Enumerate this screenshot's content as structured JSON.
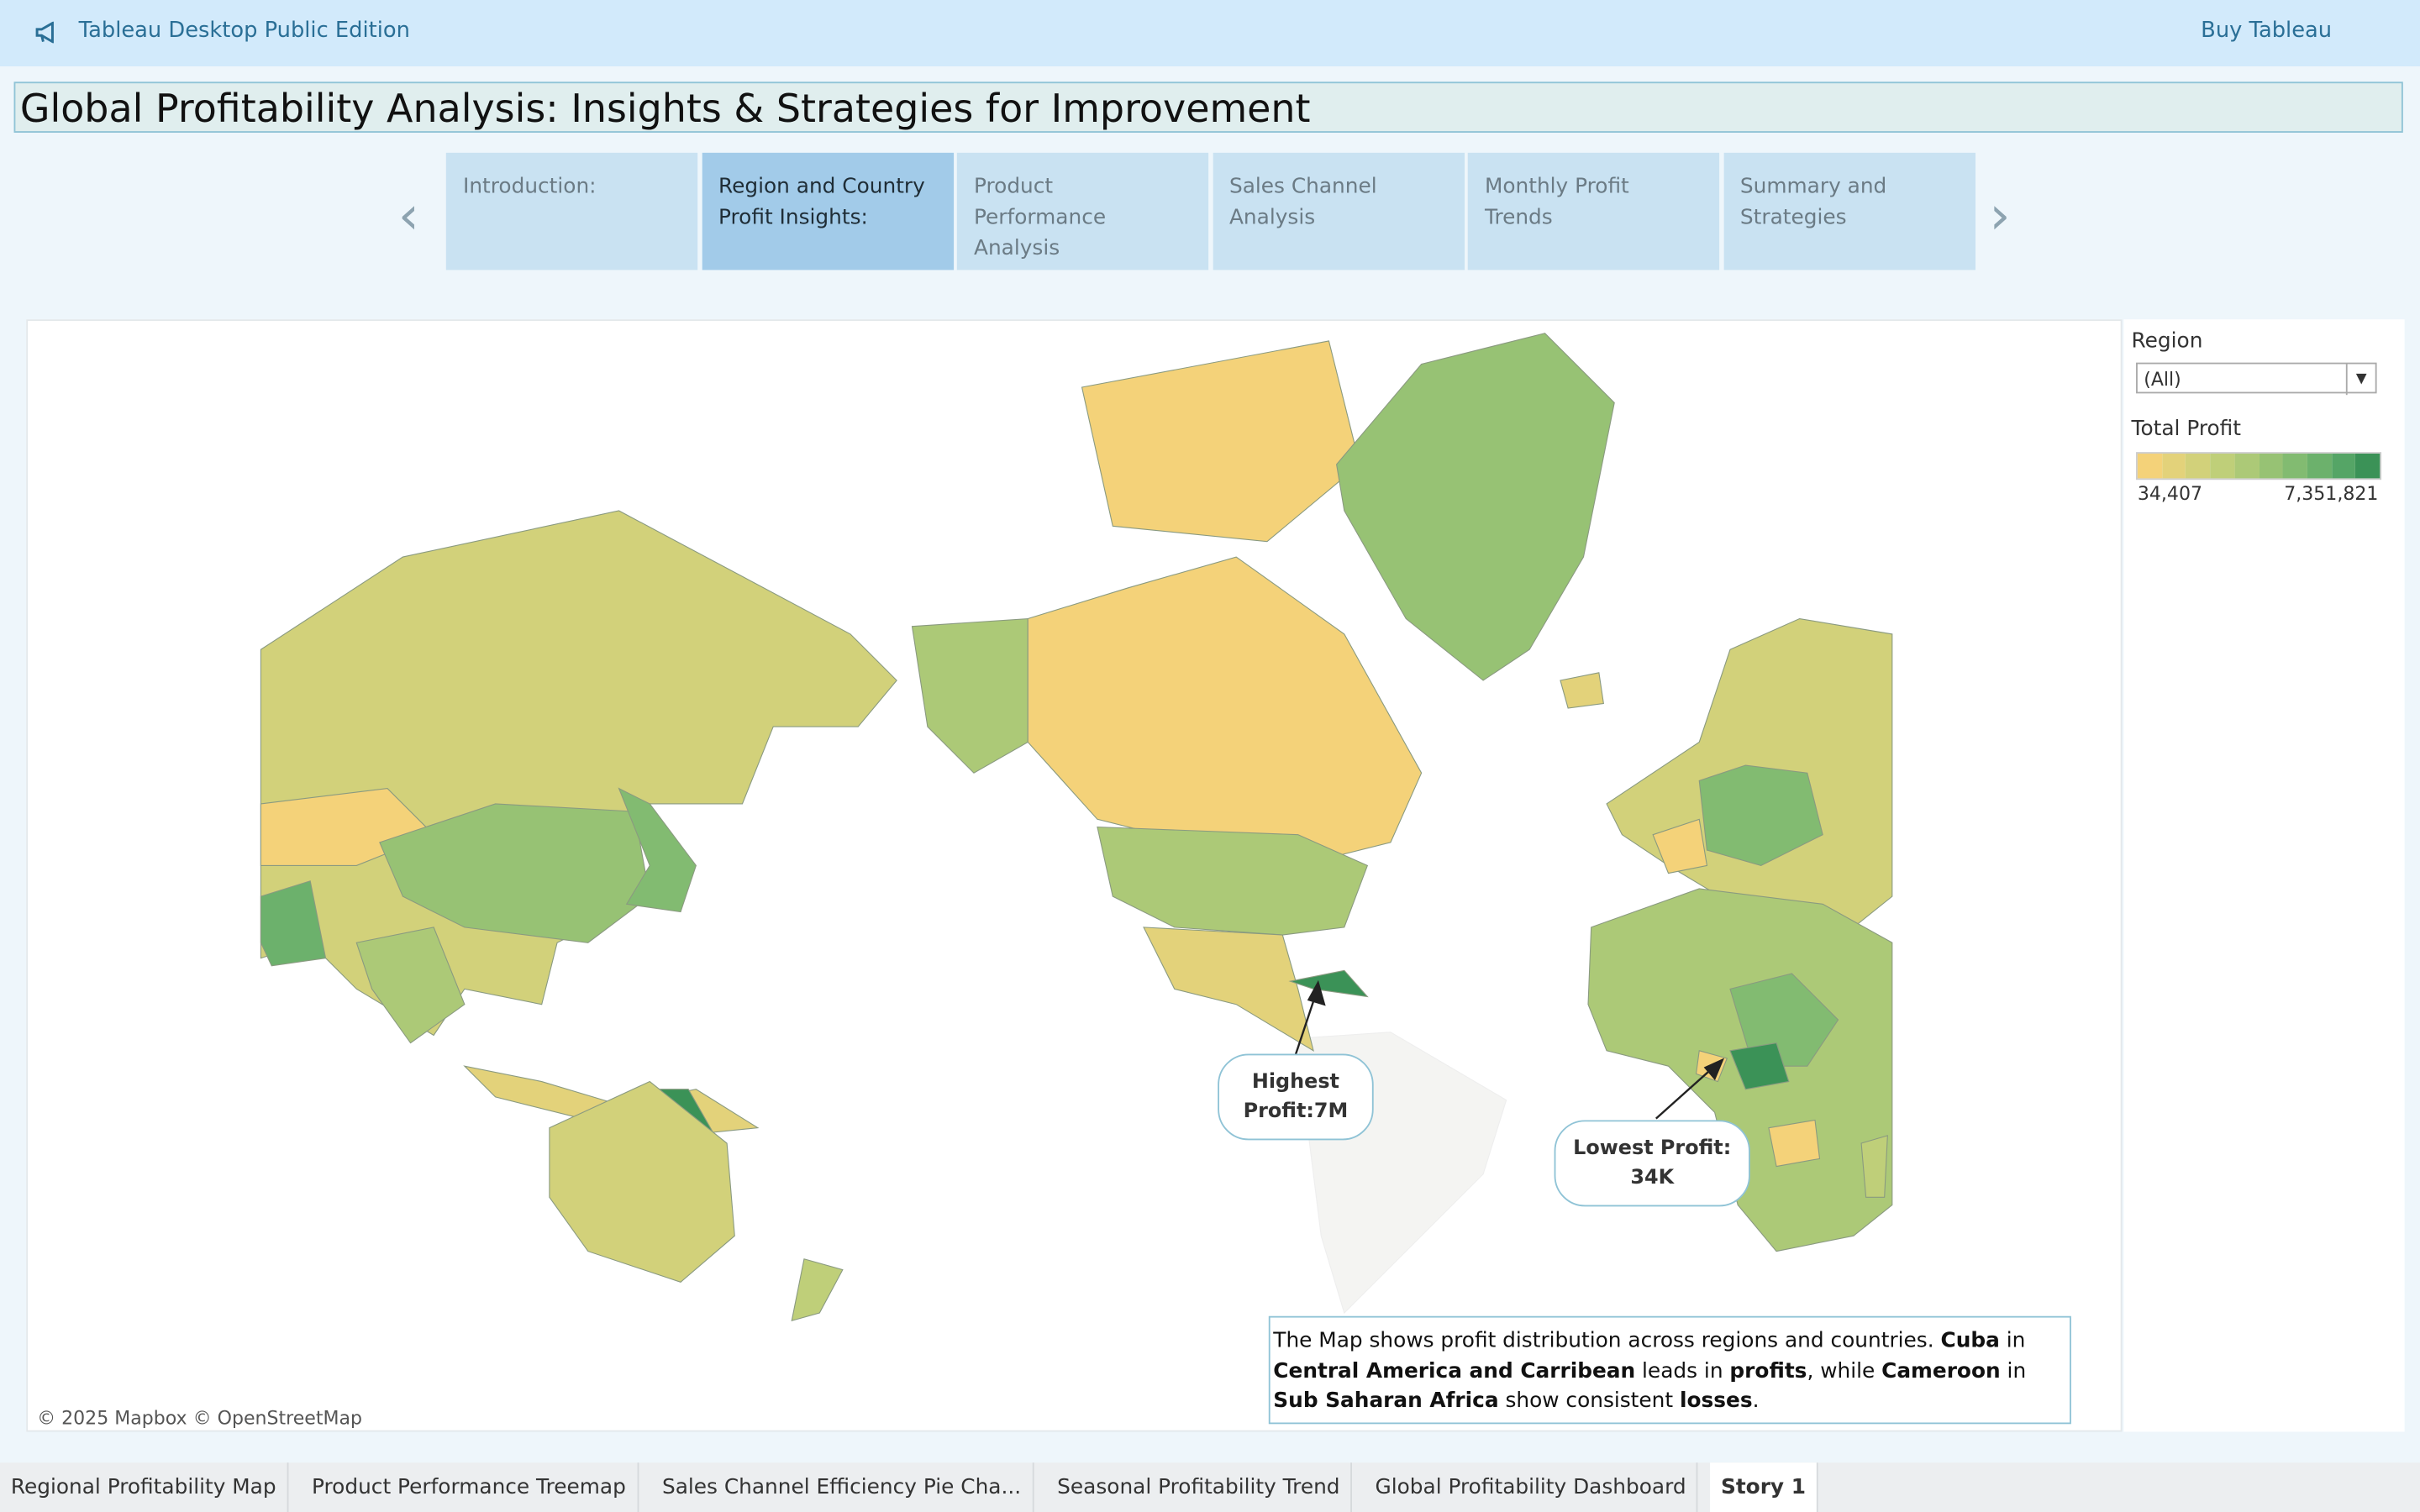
{
  "header": {
    "app_name": "Tableau Desktop Public Edition",
    "buy_link": "Buy Tableau"
  },
  "story_title": "Global Profitability Analysis: Insights & Strategies for Improvement",
  "story_points": [
    "Introduction:",
    "Region and Country Profit Insights:",
    "Product Performance Analysis",
    "Sales Channel Analysis",
    "Monthly Profit Trends",
    "Summary and Strategies"
  ],
  "active_story_point": 1,
  "filter": {
    "label": "Region",
    "value": "(All)"
  },
  "legend": {
    "title": "Total Profit",
    "min": {
      "value": 34407,
      "label": "34,407"
    },
    "max": {
      "value": 7351821,
      "label": "7,351,821"
    },
    "colors": [
      "#f4d279",
      "#e3d27a",
      "#d2d17a",
      "#bfcf79",
      "#acc977",
      "#97c274",
      "#82bb71",
      "#6cb16c",
      "#55a566",
      "#3b9257"
    ]
  },
  "annotations": [
    {
      "lines": [
        "Highest",
        "Profit:7M"
      ]
    },
    {
      "lines": [
        "Lowest Profit:",
        "34K"
      ]
    }
  ],
  "caption": [
    {
      "text": "The Map shows profit distribution across regions and countries. ",
      "bold": false
    },
    {
      "text": "Cuba",
      "bold": true
    },
    {
      "text": " in ",
      "bold": false
    },
    {
      "text": "Central America and Carribean",
      "bold": true
    },
    {
      "text": " leads in ",
      "bold": false
    },
    {
      "text": "profits",
      "bold": true
    },
    {
      "text": ", while ",
      "bold": false
    },
    {
      "text": "Cameroon",
      "bold": true
    },
    {
      "text": " in ",
      "bold": false
    },
    {
      "text": "Sub Saharan Africa",
      "bold": true
    },
    {
      "text": " show consistent ",
      "bold": false
    },
    {
      "text": "losses",
      "bold": true
    },
    {
      "text": ".",
      "bold": false
    }
  ],
  "attribution": "© 2025 Mapbox © OpenStreetMap",
  "sheet_tabs": [
    "Regional Profitability Map",
    "Product Performance Treemap",
    "Sales Channel Efficiency Pie Cha...",
    "Seasonal Profitability Trend",
    "Global Profitability Dashboard",
    "Story 1"
  ],
  "active_tab": 5
}
